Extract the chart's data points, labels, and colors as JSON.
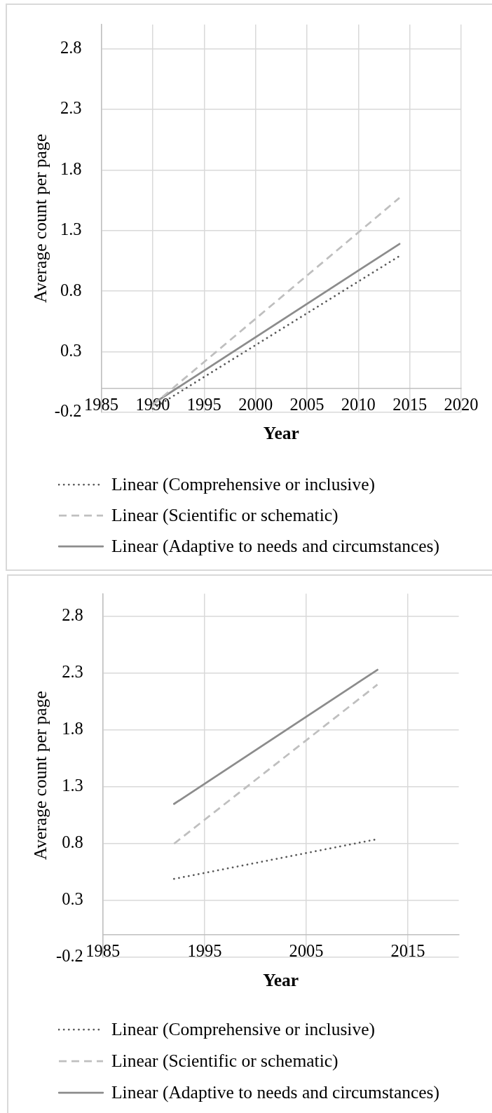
{
  "chart_data": [
    {
      "type": "line",
      "xlabel": "Year",
      "ylabel": "Average count per page",
      "xlim": [
        1985,
        2020
      ],
      "xticks": [
        1985,
        1990,
        1995,
        2000,
        2005,
        2010,
        2015,
        2020
      ],
      "ylim": [
        -0.2,
        3
      ],
      "yticks": [
        -0.2,
        0.3,
        0.8,
        1.3,
        1.8,
        2.3,
        2.8
      ],
      "grid": true,
      "legend": "bottom",
      "series": [
        {
          "name": "Linear (Comprehensive or inclusive)",
          "color": "#595959",
          "line_style": "dotted",
          "x": [
            1990,
            2014
          ],
          "values": [
            -0.17,
            1.09
          ]
        },
        {
          "name": "Linear (Scientific or schematic)",
          "color": "#bfbfbf",
          "line_style": "dashed",
          "x": [
            1990,
            2014
          ],
          "values": [
            -0.14,
            1.57
          ]
        },
        {
          "name": "Linear (Adaptive to needs and circumstances)",
          "color": "#8c8c8c",
          "line_style": "solid",
          "x": [
            1990,
            2014
          ],
          "values": [
            -0.13,
            1.19
          ]
        }
      ]
    },
    {
      "type": "line",
      "xlabel": "Year",
      "ylabel": "Average count per page",
      "xlim": [
        1985,
        2020
      ],
      "xticks": [
        1985,
        1995,
        2005,
        2015
      ],
      "ylim": [
        -0.2,
        3
      ],
      "yticks": [
        -0.2,
        0.3,
        0.8,
        1.3,
        1.8,
        2.3,
        2.8
      ],
      "grid": true,
      "legend": "bottom",
      "series": [
        {
          "name": "Linear (Comprehensive or inclusive)",
          "color": "#595959",
          "line_style": "dotted",
          "x": [
            1992,
            2012
          ],
          "values": [
            0.49,
            0.84
          ]
        },
        {
          "name": "Linear (Scientific or schematic)",
          "color": "#bfbfbf",
          "line_style": "dashed",
          "x": [
            1992,
            2012
          ],
          "values": [
            0.8,
            2.2
          ]
        },
        {
          "name": "Linear (Adaptive to needs and circumstances)",
          "color": "#8c8c8c",
          "line_style": "solid",
          "x": [
            1992,
            2012
          ],
          "values": [
            1.15,
            2.33
          ]
        }
      ]
    }
  ]
}
